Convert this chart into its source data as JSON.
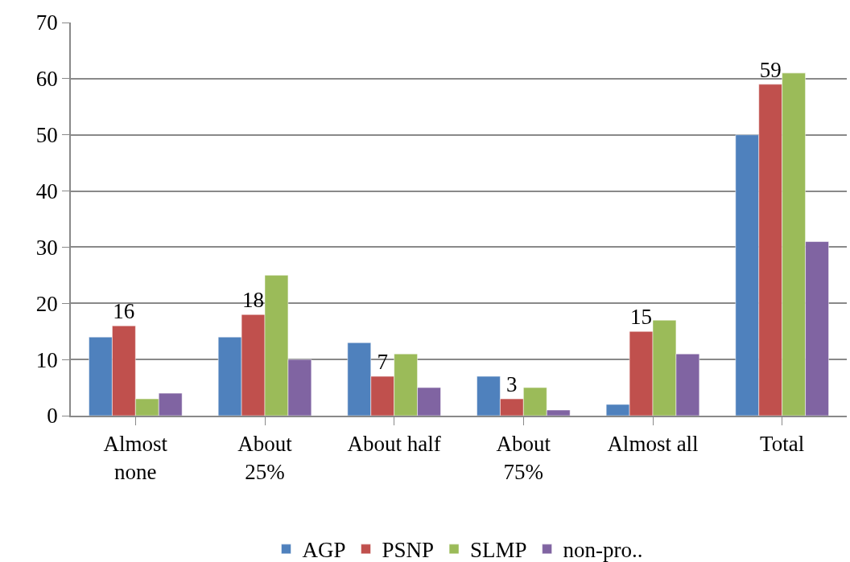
{
  "chart_data": {
    "type": "bar",
    "categories": [
      "Almost\nnone",
      "About\n25%",
      "About half",
      "About\n75%",
      "Almost all",
      "Total"
    ],
    "series": [
      {
        "name": "AGP",
        "color": "#4f81bd",
        "values": [
          14,
          14,
          13,
          7,
          2,
          50
        ]
      },
      {
        "name": "PSNP",
        "color": "#c0504d",
        "values": [
          16,
          18,
          7,
          3,
          15,
          59
        ],
        "value_labels": [
          "16",
          "18",
          "7",
          "3",
          "15",
          "59"
        ]
      },
      {
        "name": "SLMP",
        "color": "#9bbb59",
        "values": [
          3,
          25,
          11,
          5,
          17,
          61
        ]
      },
      {
        "name": "non-pro..",
        "color": "#8064a2",
        "values": [
          4,
          10,
          5,
          1,
          11,
          31
        ]
      }
    ],
    "ylim": [
      0,
      70
    ],
    "yticks": [
      0,
      10,
      20,
      30,
      40,
      50,
      60,
      70
    ],
    "grid": "y",
    "legend": "bottom"
  }
}
